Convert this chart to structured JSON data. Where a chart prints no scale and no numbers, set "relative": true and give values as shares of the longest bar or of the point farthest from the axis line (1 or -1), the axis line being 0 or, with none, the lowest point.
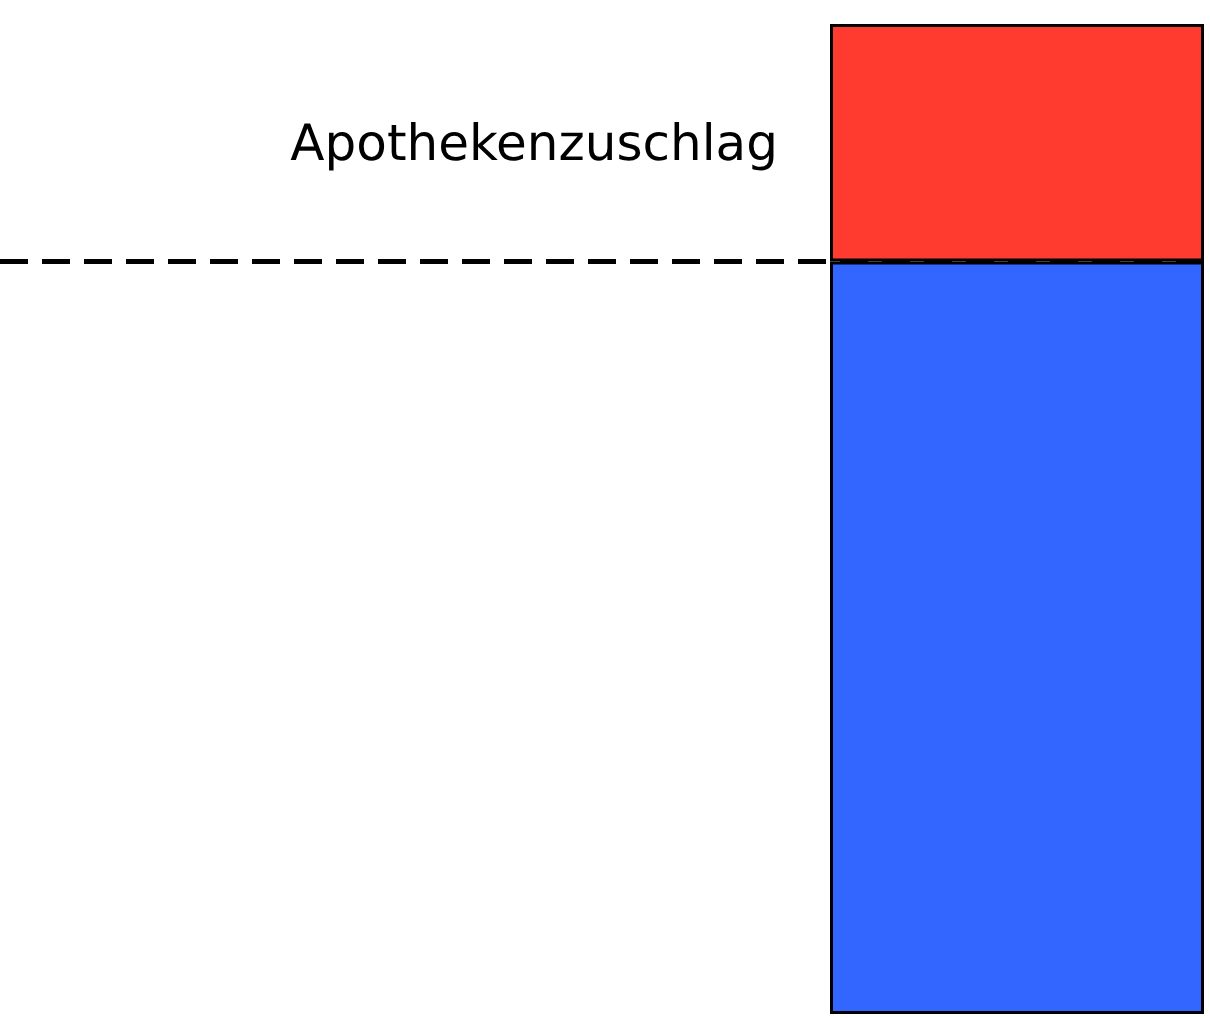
{
  "chart_data": {
    "type": "bar",
    "relative": true,
    "stacked": true,
    "categories": [
      null
    ],
    "series": [
      {
        "color": "#3366ff",
        "values": [
          0.76
        ]
      },
      {
        "name": "Apothekenzuschlag",
        "color": "#ff3b30",
        "values": [
          0.24
        ]
      }
    ],
    "ref_lines": [
      {
        "axis": "y",
        "value": 0.76,
        "color": "#000000",
        "line_style": "dashed"
      }
    ]
  }
}
